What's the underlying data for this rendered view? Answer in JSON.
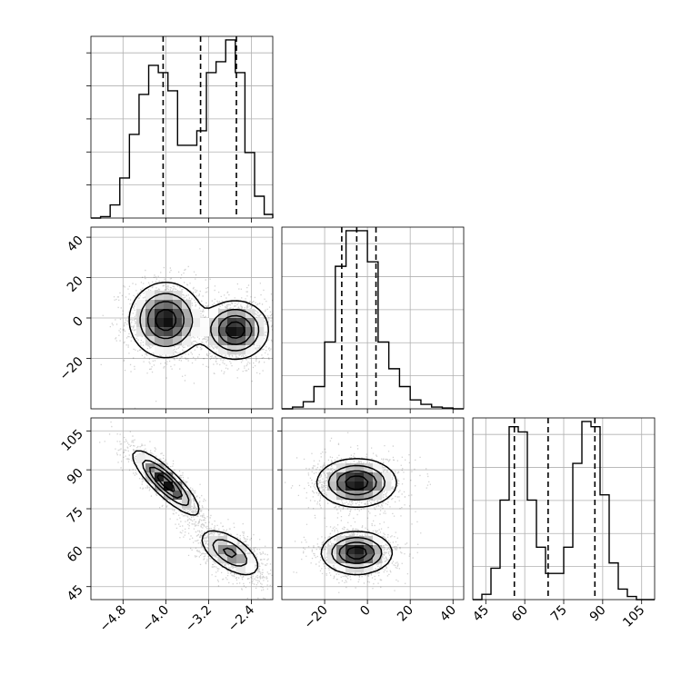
{
  "chart_data": {
    "type": "corner",
    "title": "",
    "colors": {
      "line": "#000000",
      "grid": "#b0b0b0",
      "scatter": "#000000",
      "background": "#ffffff"
    },
    "params": [
      {
        "ticks": [
          -4.8,
          -4.0,
          -3.2,
          -2.4
        ],
        "tick_labels": [
          "−4.8",
          "−4.0",
          "−3.2",
          "−2.4"
        ]
      },
      {
        "ticks": [
          -20,
          0,
          20,
          40
        ],
        "tick_labels": [
          "−20",
          "0",
          "20",
          "40"
        ]
      },
      {
        "ticks": [
          45,
          60,
          75,
          90,
          105
        ],
        "tick_labels": [
          "45",
          "60",
          "75",
          "90",
          "105"
        ]
      }
    ],
    "diagonal": [
      {
        "param": 0,
        "range": [
          -5.4,
          -2.0
        ],
        "quantiles": [
          -4.05,
          -3.35,
          -2.68
        ],
        "hist_bins": [
          -5.4,
          -5.22,
          -5.04,
          -4.86,
          -4.68,
          -4.5,
          -4.32,
          -4.14,
          -3.96,
          -3.78,
          -3.6,
          -3.42,
          -3.24,
          -3.06,
          -2.88,
          -2.7,
          -2.52,
          -2.34,
          -2.16,
          -2.0
        ],
        "hist_values": [
          0,
          2,
          18,
          55,
          115,
          170,
          210,
          200,
          175,
          100,
          100,
          120,
          200,
          215,
          245,
          200,
          90,
          30,
          5
        ]
      },
      {
        "param": 1,
        "range": [
          -40,
          45
        ],
        "quantiles": [
          -12,
          -5,
          4
        ],
        "hist_bins": [
          -40,
          -35,
          -30,
          -25,
          -20,
          -15,
          -10,
          -5,
          0,
          5,
          10,
          15,
          20,
          25,
          30,
          35,
          40,
          45
        ],
        "hist_values": [
          0,
          2,
          8,
          25,
          75,
          160,
          200,
          200,
          165,
          75,
          45,
          25,
          10,
          5,
          2,
          1,
          0
        ]
      },
      {
        "param": 2,
        "range": [
          40,
          110
        ],
        "quantiles": [
          56,
          69,
          87
        ],
        "hist_bins": [
          40,
          43.5,
          47,
          50.5,
          54,
          57.5,
          61,
          64.5,
          68,
          71.5,
          75,
          78.5,
          82,
          85.5,
          89,
          92.5,
          96,
          99.5,
          103,
          106.5,
          110
        ],
        "hist_values": [
          0,
          5,
          30,
          95,
          165,
          160,
          95,
          50,
          25,
          25,
          50,
          130,
          170,
          165,
          100,
          35,
          10,
          3,
          0,
          0
        ]
      }
    ],
    "pairs": [
      {
        "x_param": 0,
        "y_param": 1,
        "x_range": [
          -5.4,
          -2.0
        ],
        "y_range": [
          -45,
          45
        ],
        "modes": [
          {
            "cx": -4.0,
            "cy": -1,
            "sx": 0.33,
            "sy": 9,
            "rho": 0
          },
          {
            "cx": -2.7,
            "cy": -6,
            "sx": 0.3,
            "sy": 7,
            "rho": 0
          }
        ]
      },
      {
        "x_param": 0,
        "y_param": 2,
        "x_range": [
          -5.4,
          -2.0
        ],
        "y_range": [
          40,
          110
        ],
        "modes": [
          {
            "cx": -4.0,
            "cy": 85,
            "sx": 0.3,
            "sy": 6,
            "rho": -0.85
          },
          {
            "cx": -2.8,
            "cy": 58,
            "sx": 0.28,
            "sy": 4.5,
            "rho": -0.6
          }
        ]
      },
      {
        "x_param": 1,
        "y_param": 2,
        "x_range": [
          -40,
          45
        ],
        "y_range": [
          40,
          110
        ],
        "modes": [
          {
            "cx": -5,
            "cy": 85,
            "sx": 9,
            "sy": 4.5,
            "rho": 0
          },
          {
            "cx": -5,
            "cy": 58,
            "sx": 8,
            "sy": 4,
            "rho": 0
          }
        ]
      }
    ]
  }
}
